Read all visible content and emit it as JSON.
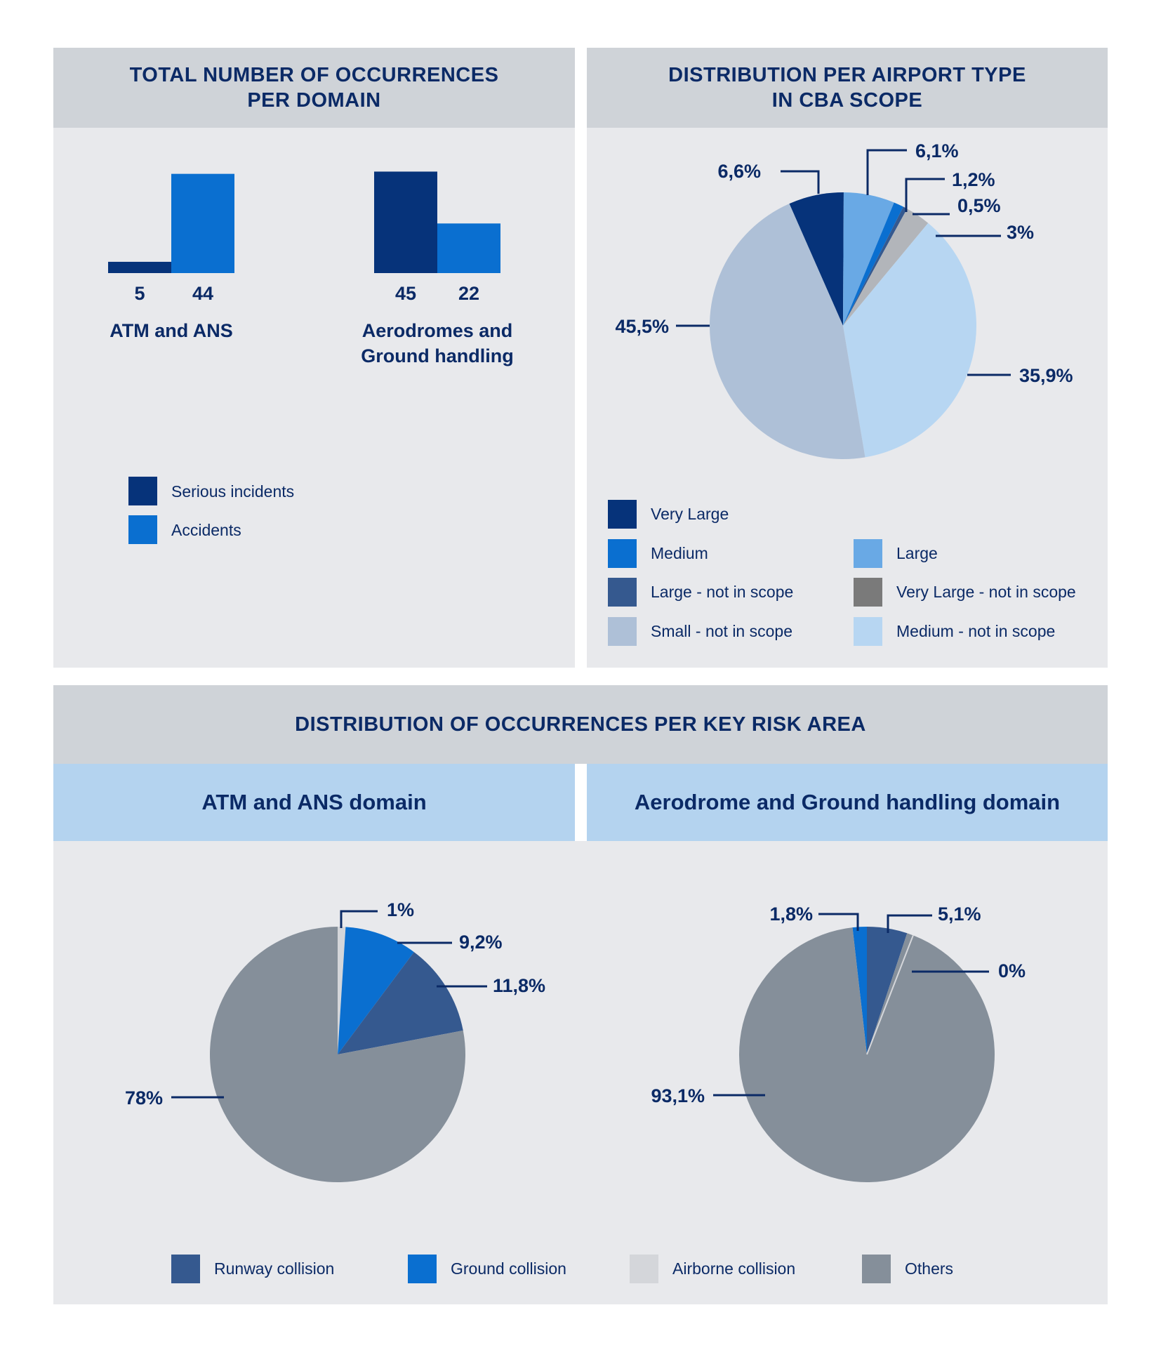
{
  "colors": {
    "serious": "#06337a",
    "accidents": "#0a6fd0",
    "very_large": "#06337a",
    "large": "#69a9e5",
    "medium": "#0a6fd0",
    "very_large_nis": "#b2b5ba",
    "large_nis": "#35598f",
    "medium_nis": "#b7d6f2",
    "small_nis": "#aec0d7",
    "runway": "#35598f",
    "ground": "#0a6fd0",
    "airborne": "#d4d6da",
    "others": "#858f9a"
  },
  "panel1": {
    "title_line1": "TOTAL NUMBER OF OCCURRENCES",
    "title_line2": "PER DOMAIN"
  },
  "panel2": {
    "title_line1": "DISTRIBUTION PER AIRPORT TYPE",
    "title_line2": "IN CBA SCOPE"
  },
  "panel3": {
    "title": "DISTRIBUTION OF OCCURRENCES PER KEY RISK AREA",
    "left_title": "ATM and ANS domain",
    "right_title": "Aerodrome and Ground handling domain"
  },
  "chart_data": [
    {
      "type": "bar",
      "title": "TOTAL NUMBER OF OCCURRENCES PER DOMAIN",
      "categories": [
        "ATM and ANS",
        "Aerodromes and Ground handling"
      ],
      "category_lines": [
        [
          "ATM and ANS"
        ],
        [
          "Aerodromes and",
          "Ground handling"
        ]
      ],
      "series": [
        {
          "name": "Serious incidents",
          "values": [
            5,
            45
          ],
          "value_labels": [
            "5",
            "45"
          ]
        },
        {
          "name": "Accidents",
          "values": [
            44,
            22
          ],
          "value_labels": [
            "44",
            "22"
          ]
        }
      ],
      "ylim": [
        0,
        47
      ],
      "legend": [
        {
          "label": "Serious incidents",
          "color_key": "serious"
        },
        {
          "label": "Accidents",
          "color_key": "accidents"
        }
      ]
    },
    {
      "type": "pie",
      "title": "DISTRIBUTION PER AIRPORT TYPE IN CBA SCOPE",
      "slices": [
        {
          "name": "Very Large",
          "value": 6.6,
          "label": "6,6%",
          "color_key": "very_large"
        },
        {
          "name": "Large",
          "value": 6.1,
          "label": "6,1%",
          "color_key": "large"
        },
        {
          "name": "Medium",
          "value": 1.2,
          "label": "1,2%",
          "color_key": "medium"
        },
        {
          "name": "Large - not in scope",
          "value": 0.5,
          "label": "0,5%",
          "color_key": "large_nis"
        },
        {
          "name": "Very Large - not in scope",
          "value": 3,
          "label": "3%",
          "color_key": "very_large_nis"
        },
        {
          "name": "Medium - not in scope",
          "value": 35.9,
          "label": "35,9%",
          "color_key": "medium_nis"
        },
        {
          "name": "Small - not in scope",
          "value": 45.5,
          "label": "45,5%",
          "color_key": "small_nis"
        }
      ],
      "legend": [
        {
          "label": "Very Large",
          "color_key": "very_large"
        },
        {
          "label": "Medium",
          "color_key": "medium"
        },
        {
          "label": "Large",
          "color_key": "large"
        },
        {
          "label": "Large - not in scope",
          "color_key": "large_nis"
        },
        {
          "label": "Very Large - not in scope",
          "color_key": "very_large_nis"
        },
        {
          "label": "Small - not in scope",
          "color_key": "small_nis"
        },
        {
          "label": "Medium - not in scope",
          "color_key": "medium_nis"
        }
      ]
    },
    {
      "type": "pie",
      "title": "ATM and ANS domain",
      "slices": [
        {
          "name": "Airborne collision",
          "value": 1,
          "label": "1%",
          "color_key": "airborne"
        },
        {
          "name": "Ground collision",
          "value": 9.2,
          "label": "9,2%",
          "color_key": "ground"
        },
        {
          "name": "Runway collision",
          "value": 11.8,
          "label": "11,8%",
          "color_key": "runway"
        },
        {
          "name": "Others",
          "value": 78,
          "label": "78%",
          "color_key": "others"
        }
      ]
    },
    {
      "type": "pie",
      "title": "Aerodrome and Ground handling domain",
      "slices": [
        {
          "name": "Ground collision",
          "value": 1.8,
          "label": "1,8%",
          "color_key": "ground"
        },
        {
          "name": "Runway collision",
          "value": 5.1,
          "label": "5,1%",
          "color_key": "runway"
        },
        {
          "name": "Airborne collision",
          "value": 0,
          "label": "0%",
          "color_key": "airborne"
        },
        {
          "name": "Others",
          "value": 93.1,
          "label": "93,1%",
          "color_key": "others"
        }
      ],
      "legend": [
        {
          "label": "Runway collision",
          "color_key": "runway"
        },
        {
          "label": "Ground collision",
          "color_key": "ground"
        },
        {
          "label": "Airborne collision",
          "color_key": "airborne"
        },
        {
          "label": "Others",
          "color_key": "others"
        }
      ]
    }
  ]
}
